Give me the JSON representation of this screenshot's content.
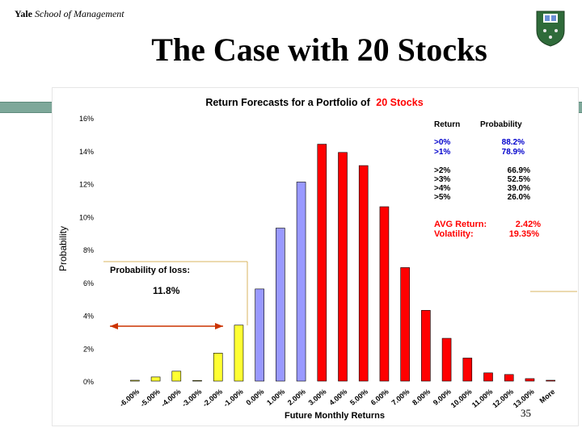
{
  "header": {
    "org_bold": "Yale",
    "org_italic": "School of Management"
  },
  "slide": {
    "title": "The Case with 20 Stocks",
    "page_number": "35"
  },
  "colors": {
    "band": "#7ea89a",
    "bar_red": "#ff0000",
    "bar_blue": "#9999ff",
    "bar_yellow": "#ffff33",
    "title_red": "#ff0000",
    "blue_text": "#0000cc"
  },
  "icons": {
    "crest": "yale-som-crest-icon"
  },
  "chart_data": {
    "type": "bar",
    "title_prefix": "Return Forecasts for a Portfolio of",
    "title_highlight": "20 Stocks",
    "xlabel": "Future Monthly Returns",
    "ylabel": "Probability",
    "ylim": [
      0,
      16
    ],
    "yticks": [
      "0%",
      "2%",
      "4%",
      "6%",
      "8%",
      "10%",
      "12%",
      "14%",
      "16%"
    ],
    "categories": [
      "-6.00%",
      "-5.00%",
      "-4.00%",
      "-3.00%",
      "-2.00%",
      "-1.00%",
      "0.00%",
      "1.00%",
      "2.00%",
      "3.00%",
      "4.00%",
      "5.00%",
      "6.00%",
      "7.00%",
      "8.00%",
      "9.00%",
      "10.00%",
      "11.00%",
      "12.00%",
      "13.00%",
      "More"
    ],
    "values": [
      0.05,
      0.25,
      0.6,
      0.0,
      1.7,
      3.4,
      5.6,
      9.3,
      12.1,
      14.4,
      13.9,
      13.1,
      10.6,
      6.9,
      4.3,
      2.6,
      1.4,
      0.5,
      0.4,
      0.15,
      0.05
    ],
    "bar_colors": [
      "#ffff33",
      "#ffff33",
      "#ffff33",
      "#ffff33",
      "#ffff33",
      "#ffff33",
      "#9999ff",
      "#9999ff",
      "#9999ff",
      "#ff0000",
      "#ff0000",
      "#ff0000",
      "#ff0000",
      "#ff0000",
      "#ff0000",
      "#ff0000",
      "#ff0000",
      "#ff0000",
      "#ff0000",
      "#ff0000",
      "#ff0000"
    ],
    "stats_table": {
      "col_return": "Return",
      "col_probability": "Probability",
      "group1": [
        {
          "ret": ">0%",
          "prob": "88.2%"
        },
        {
          "ret": ">1%",
          "prob": "78.9%"
        }
      ],
      "group2": [
        {
          "ret": ">2%",
          "prob": "66.9%"
        },
        {
          "ret": ">3%",
          "prob": "52.5%"
        },
        {
          "ret": ">4%",
          "prob": "39.0%"
        },
        {
          "ret": ">5%",
          "prob": "26.0%"
        }
      ]
    },
    "avg_return_label": "AVG Return:",
    "avg_return_value": "2.42%",
    "volatility_label": "Volatility:",
    "volatility_value": "19.35%",
    "loss_box_label": "Probability of loss:",
    "loss_box_value": "11.8%"
  }
}
